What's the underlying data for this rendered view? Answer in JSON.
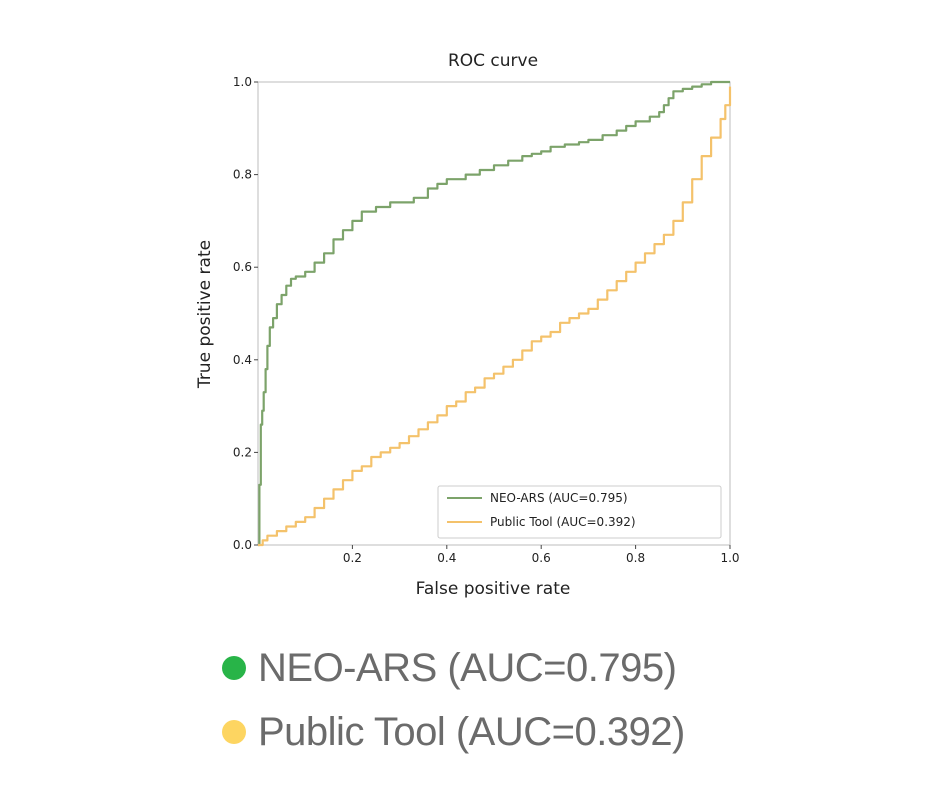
{
  "chart_data": {
    "type": "line",
    "title": "ROC curve",
    "xlabel": "False positive rate",
    "ylabel": "True positive rate",
    "xlim": [
      0,
      1
    ],
    "ylim": [
      0,
      1
    ],
    "x_ticks": [
      "0.2",
      "0.4",
      "0.6",
      "0.8",
      "1.0"
    ],
    "y_ticks": [
      "0.0",
      "0.2",
      "0.4",
      "0.6",
      "0.8",
      "1.0"
    ],
    "grid": false,
    "legend_position": "lower-right",
    "series": [
      {
        "name": "NEO-ARS (AUC=0.795)",
        "color": "#7ca36a",
        "x": [
          0,
          0.003,
          0.006,
          0.009,
          0.012,
          0.016,
          0.02,
          0.025,
          0.032,
          0.04,
          0.05,
          0.06,
          0.07,
          0.08,
          0.1,
          0.12,
          0.14,
          0.16,
          0.18,
          0.2,
          0.22,
          0.25,
          0.28,
          0.3,
          0.33,
          0.36,
          0.38,
          0.4,
          0.42,
          0.44,
          0.47,
          0.5,
          0.53,
          0.56,
          0.58,
          0.6,
          0.62,
          0.65,
          0.68,
          0.7,
          0.73,
          0.76,
          0.78,
          0.8,
          0.83,
          0.85,
          0.86,
          0.87,
          0.88,
          0.9,
          0.92,
          0.94,
          0.96,
          0.98,
          1.0
        ],
        "y": [
          0,
          0.13,
          0.26,
          0.29,
          0.33,
          0.38,
          0.43,
          0.47,
          0.49,
          0.52,
          0.54,
          0.56,
          0.575,
          0.58,
          0.59,
          0.61,
          0.63,
          0.66,
          0.68,
          0.7,
          0.72,
          0.73,
          0.74,
          0.74,
          0.75,
          0.77,
          0.78,
          0.79,
          0.79,
          0.8,
          0.81,
          0.82,
          0.83,
          0.84,
          0.845,
          0.85,
          0.86,
          0.865,
          0.87,
          0.875,
          0.885,
          0.895,
          0.905,
          0.915,
          0.925,
          0.935,
          0.95,
          0.965,
          0.98,
          0.985,
          0.99,
          0.995,
          1.0,
          1.0,
          1.0
        ]
      },
      {
        "name": "Public Tool (AUC=0.392)",
        "color": "#f4c26b",
        "x": [
          0,
          0.01,
          0.02,
          0.04,
          0.06,
          0.08,
          0.1,
          0.12,
          0.14,
          0.16,
          0.18,
          0.2,
          0.22,
          0.24,
          0.26,
          0.28,
          0.3,
          0.32,
          0.34,
          0.36,
          0.38,
          0.4,
          0.42,
          0.44,
          0.46,
          0.48,
          0.5,
          0.52,
          0.54,
          0.56,
          0.58,
          0.6,
          0.62,
          0.64,
          0.66,
          0.68,
          0.7,
          0.72,
          0.74,
          0.76,
          0.78,
          0.8,
          0.82,
          0.84,
          0.86,
          0.88,
          0.9,
          0.92,
          0.94,
          0.96,
          0.98,
          0.99,
          1.0
        ],
        "y": [
          0,
          0.01,
          0.02,
          0.03,
          0.04,
          0.05,
          0.06,
          0.08,
          0.1,
          0.12,
          0.14,
          0.16,
          0.17,
          0.19,
          0.2,
          0.21,
          0.22,
          0.235,
          0.25,
          0.265,
          0.28,
          0.3,
          0.31,
          0.33,
          0.34,
          0.36,
          0.37,
          0.385,
          0.4,
          0.42,
          0.44,
          0.45,
          0.46,
          0.48,
          0.49,
          0.5,
          0.51,
          0.53,
          0.55,
          0.57,
          0.59,
          0.61,
          0.63,
          0.65,
          0.67,
          0.7,
          0.74,
          0.79,
          0.84,
          0.88,
          0.92,
          0.95,
          0.99
        ]
      }
    ]
  },
  "legend_box": {
    "entries": [
      "NEO-ARS (AUC=0.795)",
      "Public Tool (AUC=0.392)"
    ]
  },
  "big_legend": [
    {
      "label": "NEO-ARS (AUC=0.795)",
      "dot_color": "#28b448"
    },
    {
      "label": "Public Tool (AUC=0.392)",
      "dot_color": "#fdd561"
    }
  ]
}
